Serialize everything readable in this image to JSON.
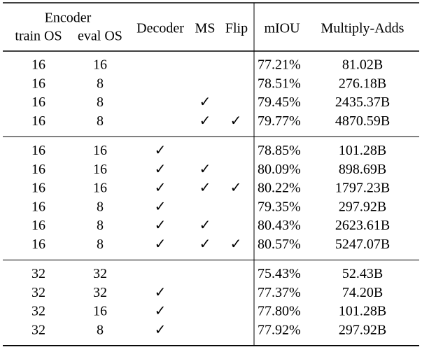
{
  "table": {
    "header": {
      "group": "Encoder",
      "columns": [
        "train OS",
        "eval OS",
        "Decoder",
        "MS",
        "Flip",
        "mIOU",
        "Multiply-Adds"
      ]
    },
    "groups": [
      [
        [
          "16",
          "16",
          null,
          null,
          null,
          "77.21%",
          "81.02B"
        ],
        [
          "16",
          "8",
          null,
          null,
          null,
          "78.51%",
          "276.18B"
        ],
        [
          "16",
          "8",
          null,
          "✓",
          null,
          "79.45%",
          "2435.37B"
        ],
        [
          "16",
          "8",
          null,
          "✓",
          "✓",
          "79.77%",
          "4870.59B"
        ]
      ],
      [
        [
          "16",
          "16",
          "✓",
          null,
          null,
          "78.85%",
          "101.28B"
        ],
        [
          "16",
          "16",
          "✓",
          "✓",
          null,
          "80.09%",
          "898.69B"
        ],
        [
          "16",
          "16",
          "✓",
          "✓",
          "✓",
          "80.22%",
          "1797.23B"
        ],
        [
          "16",
          "8",
          "✓",
          null,
          null,
          "79.35%",
          "297.92B"
        ],
        [
          "16",
          "8",
          "✓",
          "✓",
          null,
          "80.43%",
          "2623.61B"
        ],
        [
          "16",
          "8",
          "✓",
          "✓",
          "✓",
          "80.57%",
          "5247.07B"
        ]
      ],
      [
        [
          "32",
          "32",
          null,
          null,
          null,
          "75.43%",
          "52.43B"
        ],
        [
          "32",
          "32",
          "✓",
          null,
          null,
          "77.37%",
          "74.20B"
        ],
        [
          "32",
          "16",
          "✓",
          null,
          null,
          "77.80%",
          "101.28B"
        ],
        [
          "32",
          "8",
          "✓",
          null,
          null,
          "77.92%",
          "297.92B"
        ]
      ]
    ]
  }
}
